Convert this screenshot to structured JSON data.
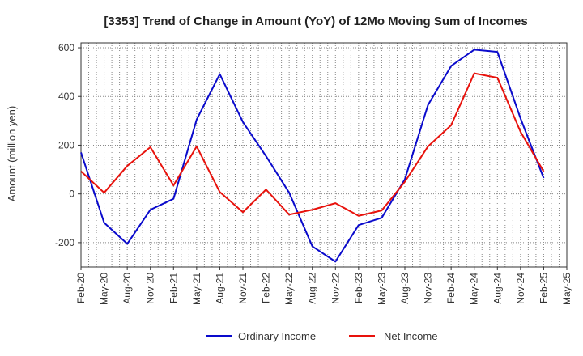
{
  "chart_data": {
    "type": "line",
    "title": "[3353]  Trend of Change in Amount (YoY) of 12Mo Moving Sum of Incomes",
    "ylabel": "Amount (million yen)",
    "xlabel": "",
    "ylim": [
      -300,
      620
    ],
    "yticks": [
      -200,
      0,
      200,
      400,
      600
    ],
    "grid": true,
    "legend_position": "bottom-center",
    "categories": [
      "Feb-20",
      "May-20",
      "Aug-20",
      "Nov-20",
      "Feb-21",
      "May-21",
      "Aug-21",
      "Nov-21",
      "Feb-22",
      "May-22",
      "Aug-22",
      "Nov-22",
      "Feb-23",
      "May-23",
      "Aug-23",
      "Nov-23",
      "Feb-24",
      "May-24",
      "Aug-24",
      "Nov-24",
      "Feb-25",
      "May-25"
    ],
    "series": [
      {
        "name": "Ordinary Income",
        "color": "#0a0acc",
        "values": [
          170,
          -118,
          -205,
          -65,
          -20,
          305,
          492,
          295,
          155,
          5,
          -215,
          -278,
          -128,
          -98,
          60,
          365,
          525,
          592,
          583,
          310,
          65,
          null
        ]
      },
      {
        "name": "Net Income",
        "color": "#e8120c",
        "values": [
          93,
          5,
          115,
          192,
          35,
          195,
          8,
          -75,
          18,
          -85,
          -65,
          -38,
          -90,
          -68,
          50,
          195,
          282,
          495,
          477,
          255,
          92,
          null
        ]
      }
    ]
  }
}
